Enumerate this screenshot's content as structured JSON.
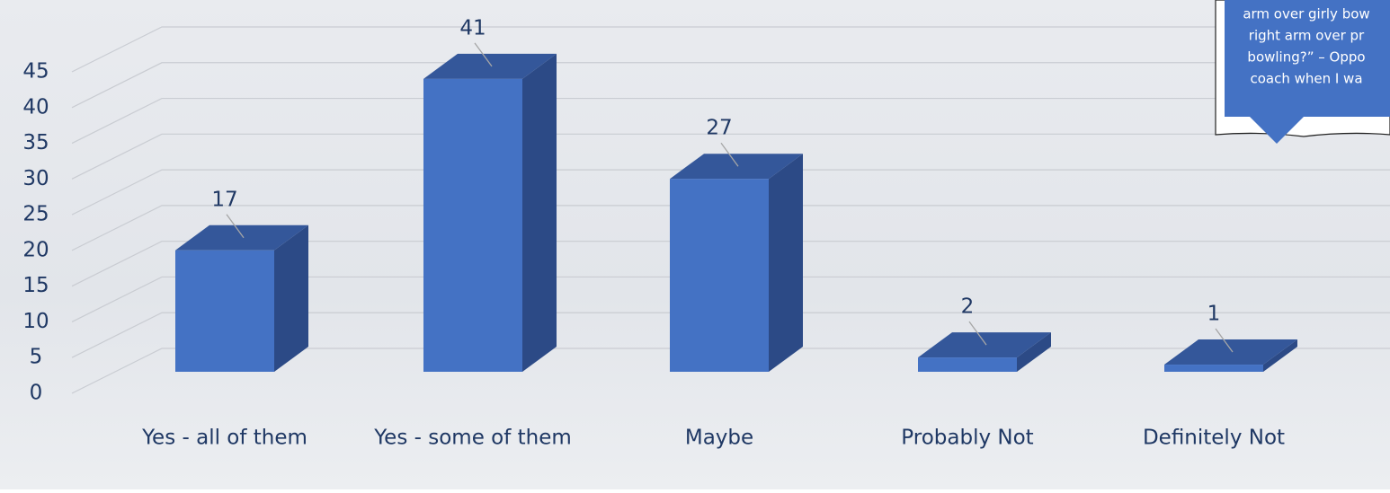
{
  "chart_data": {
    "type": "bar3d",
    "categories": [
      "Yes - all of them",
      "Yes - some of them",
      "Maybe",
      "Probably Not",
      "Definitely Not"
    ],
    "values": [
      17,
      41,
      27,
      2,
      1
    ],
    "color": "#4472c4",
    "ylim": [
      0,
      45
    ],
    "yticks": [
      0,
      5,
      10,
      15,
      20,
      25,
      30,
      35,
      40,
      45
    ],
    "grid": true,
    "annotation": [
      "arm over girly bow",
      "right arm over pr",
      "bowling?” – Oppo",
      "coach when I wa"
    ]
  }
}
